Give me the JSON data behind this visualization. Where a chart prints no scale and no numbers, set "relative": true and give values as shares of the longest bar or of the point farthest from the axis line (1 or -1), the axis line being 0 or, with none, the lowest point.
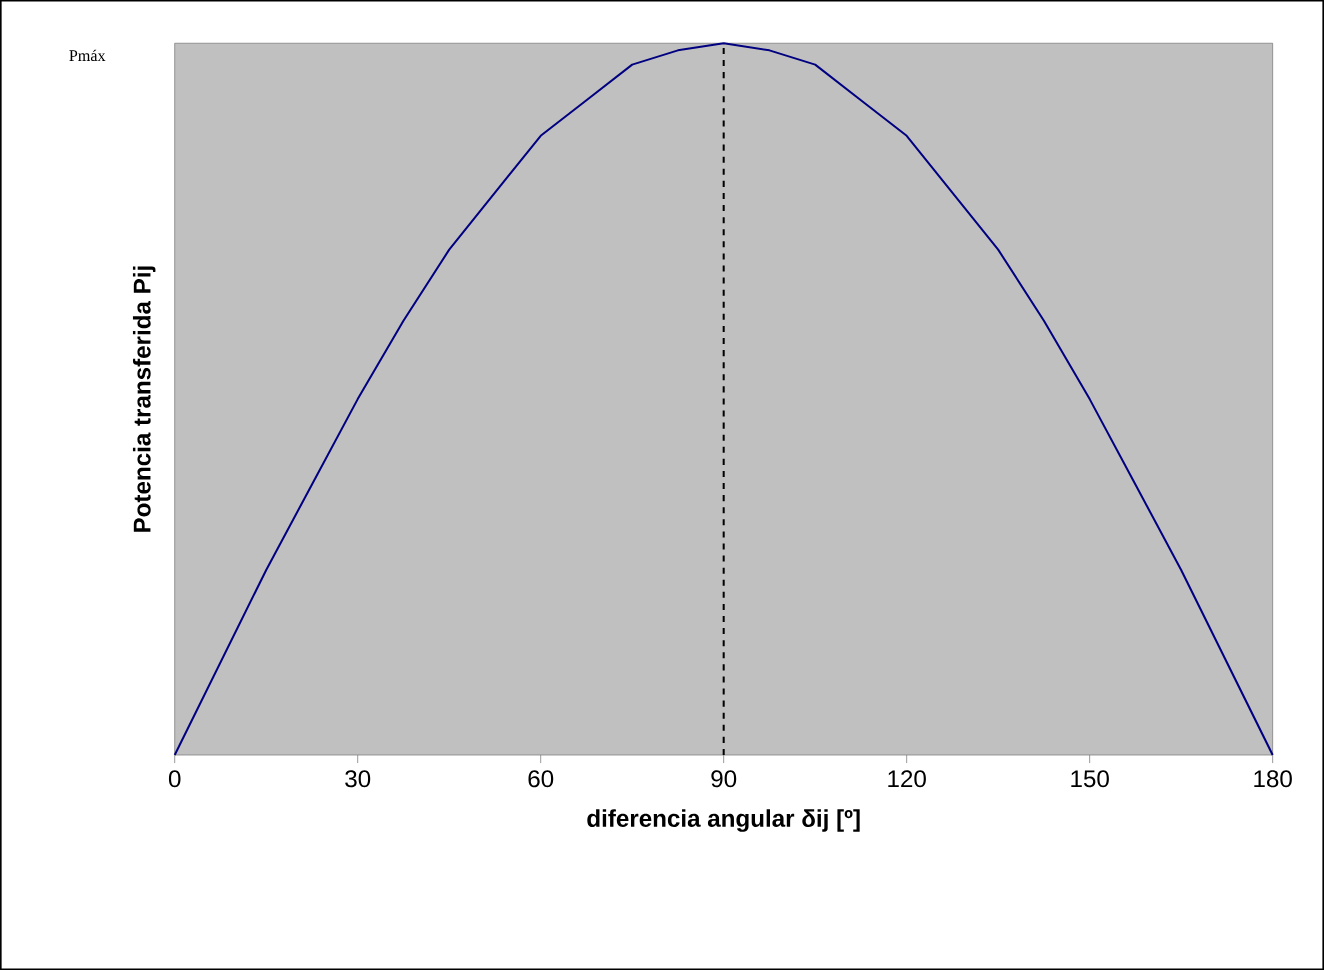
{
  "chart_data": {
    "type": "line",
    "relative": true,
    "xlabel": "diferencia angular δij [º]",
    "ylabel": "Potencia transferida Pij",
    "annotations": [
      "Pmáx"
    ],
    "x": [
      0,
      7.5,
      15,
      22.5,
      30,
      37.5,
      45,
      52.5,
      60,
      67.5,
      75,
      82.5,
      90,
      97.5,
      105,
      112.5,
      120,
      127.5,
      135,
      142.5,
      150,
      157.5,
      165,
      172.5,
      180
    ],
    "series": [
      {
        "color": "#000080",
        "values": [
          0,
          0.13,
          0.26,
          0.38,
          0.5,
          0.61,
          0.71,
          0.79,
          0.87,
          0.92,
          0.97,
          0.99,
          1,
          0.99,
          0.97,
          0.92,
          0.87,
          0.79,
          0.71,
          0.61,
          0.5,
          0.38,
          0.26,
          0.13,
          0
        ]
      }
    ],
    "xlim": [
      0,
      180
    ],
    "xticks": [
      0,
      30,
      60,
      90,
      120,
      150,
      180
    ],
    "ref_lines": [
      {
        "axis": "x",
        "value": 90,
        "color": "#000000",
        "line_style": "dashed"
      }
    ],
    "grid": false,
    "marker": "none",
    "line_style": "solid"
  }
}
